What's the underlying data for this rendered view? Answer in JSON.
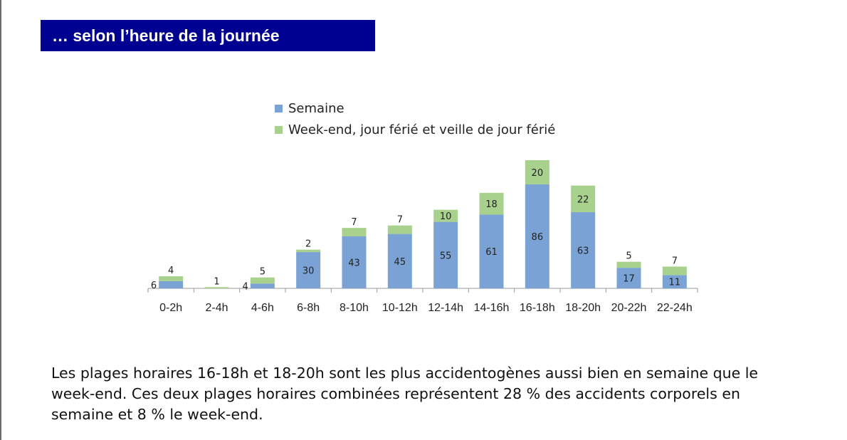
{
  "title": "… selon l’heure de la journée",
  "chart_data": {
    "type": "bar",
    "stacked": true,
    "categories": [
      "0-2h",
      "2-4h",
      "4-6h",
      "6-8h",
      "8-10h",
      "10-12h",
      "12-14h",
      "14-16h",
      "16-18h",
      "18-20h",
      "20-22h",
      "22-24h"
    ],
    "series": [
      {
        "name": "Semaine",
        "color": "#7aa2d4",
        "values": [
          6,
          0,
          4,
          30,
          43,
          45,
          55,
          61,
          86,
          63,
          17,
          11
        ]
      },
      {
        "name": "Week-end, jour férié et veille de jour férié",
        "color": "#a9d18e",
        "values": [
          4,
          1,
          5,
          2,
          7,
          7,
          10,
          18,
          20,
          22,
          5,
          7
        ]
      }
    ],
    "legend_position": "top",
    "grid": false,
    "ylim": [
      0,
      110
    ]
  },
  "paragraph": "Les plages horaires 16-18h et 18-20h sont les plus accidentogènes aussi bien en semaine que le week-end. Ces deux plages horaires combinées représentent 28 % des accidents corporels en semaine et 8 % le week-end."
}
